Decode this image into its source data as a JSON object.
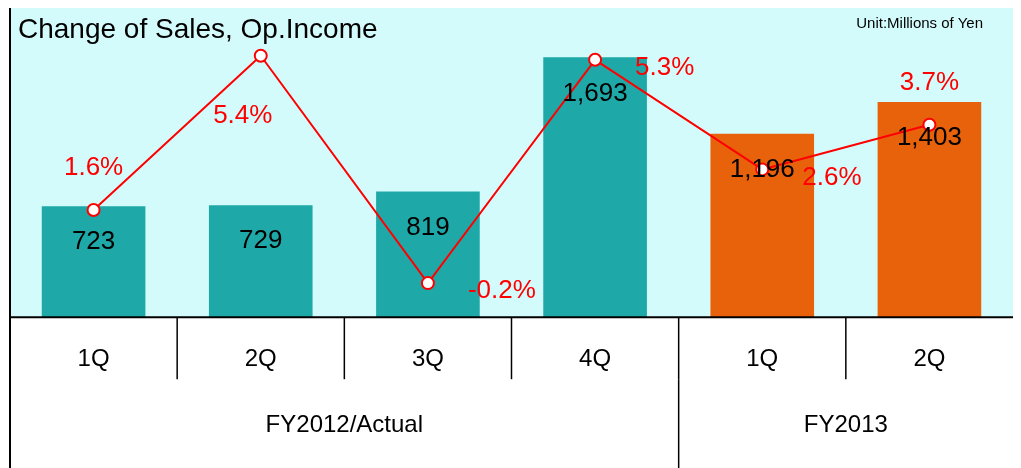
{
  "chart_data": {
    "type": "bar",
    "title": "Change of Sales, Op.Income",
    "categories": [
      "1Q",
      "2Q",
      "3Q",
      "4Q",
      "1Q",
      "2Q"
    ],
    "series": [
      {
        "colors": [
          "#1fa8a8",
          "#1fa8a8",
          "#1fa8a8",
          "#1fa8a8",
          "#e8620c",
          "#e8620c"
        ],
        "values": [
          723,
          729,
          819,
          1693,
          1196,
          1403
        ],
        "value_labels": [
          "723",
          "729",
          "819",
          "1,693",
          "1,196",
          "1,403"
        ]
      },
      {
        "type": "line",
        "axis": "y2",
        "color": "#ff0000",
        "values": [
          1.6,
          5.4,
          -0.2,
          5.3,
          2.6,
          3.7
        ],
        "value_labels": [
          "1.6%",
          "5.4%",
          "-0.2%",
          "5.3%",
          "2.6%",
          "3.7%"
        ]
      }
    ],
    "annotations": [
      "Unit:Millions of Yen",
      "FY2012/Actual",
      "FY2013"
    ],
    "marker": "circle",
    "grid": false,
    "legend": false
  }
}
